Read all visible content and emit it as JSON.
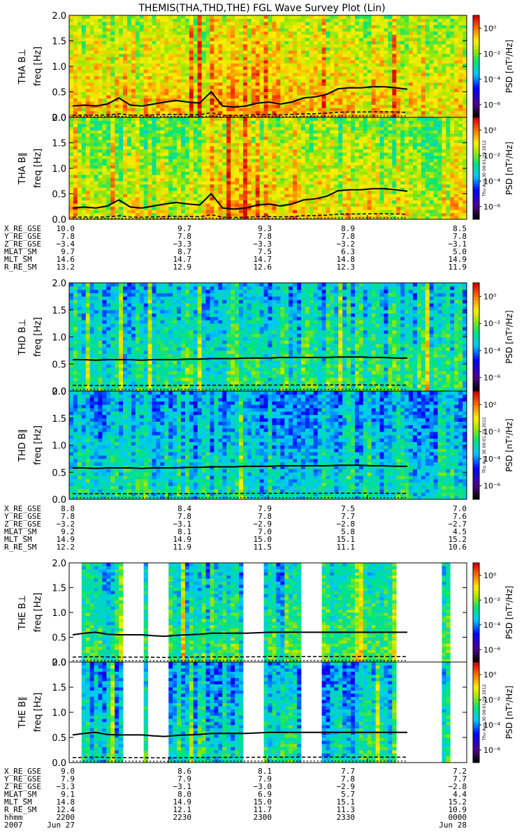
{
  "title": "THEMIS(THA,THD,THE) FGL Wave Survey Plot (Lin)",
  "colorbar": {
    "label": "PSD [nT²/Hz]",
    "tick_labels": [
      "10⁰",
      "10⁻²",
      "10⁻⁴",
      "10⁻⁶"
    ],
    "stamp": "Thu Aug 30 09:01:29 2012"
  },
  "chart_data": {
    "type": "heatmap",
    "frequency_axis": {
      "label": "freq [Hz]",
      "range": [
        0,
        2.0
      ],
      "ticks": [
        "0.0",
        "0.5",
        "1.0",
        "1.5",
        "2.0"
      ]
    },
    "color_scale": {
      "quantity": "PSD",
      "unit": "nT²/Hz",
      "log": true,
      "range": [
        1e-07,
        10
      ]
    },
    "time_axis": {
      "range": [
        "2200",
        "0000"
      ],
      "ticks": [
        "2200",
        "2230",
        "2300",
        "2330",
        "0000"
      ]
    },
    "probes": [
      {
        "id": "THA",
        "panels": [
          {
            "label": "THA B⊥",
            "mean_psd_log10": -1.2,
            "fcp_hz": [
              0.22,
              0.24,
              0.22,
              0.26,
              0.38,
              0.24,
              0.22,
              0.26,
              0.3,
              0.33,
              0.3,
              0.28,
              0.5,
              0.22,
              0.2,
              0.22,
              0.28,
              0.3,
              0.26,
              0.3,
              0.38,
              0.4,
              0.45,
              0.56,
              0.58,
              0.58,
              0.6,
              0.6,
              0.58,
              0.55
            ]
          },
          {
            "label": "THA B∥",
            "mean_psd_log10": -1.6,
            "fcp_hz": [
              0.22,
              0.24,
              0.22,
              0.26,
              0.38,
              0.24,
              0.22,
              0.26,
              0.3,
              0.33,
              0.3,
              0.28,
              0.5,
              0.22,
              0.2,
              0.22,
              0.28,
              0.3,
              0.26,
              0.3,
              0.38,
              0.4,
              0.45,
              0.56,
              0.58,
              0.58,
              0.6,
              0.6,
              0.58,
              0.55
            ]
          }
        ],
        "ephemeris": [
          [
            "X_RE_GSE",
            "10.0",
            "9.7",
            "9.3",
            "8.9",
            "8.5"
          ],
          [
            "Y_RE_GSE",
            "7.8",
            "7.8",
            "7.8",
            "7.8",
            "7.8"
          ],
          [
            "Z_RE_GSE",
            "−3.4",
            "−3.3",
            "−3.3",
            "−3.2",
            "−3.1"
          ],
          [
            "MLAT_SM",
            "9.7",
            "8.7",
            "7.5",
            "6.3",
            "5.0"
          ],
          [
            "MLT_SM",
            "14.6",
            "14.7",
            "14.7",
            "14.8",
            "14.9"
          ],
          [
            "R_RE_SM",
            "13.2",
            "12.9",
            "12.6",
            "12.3",
            "11.9"
          ]
        ]
      },
      {
        "id": "THD",
        "panels": [
          {
            "label": "THD B⊥",
            "mean_psd_log10": -3.0,
            "fcp_hz": [
              0.58,
              0.58,
              0.57,
              0.58,
              0.58,
              0.58,
              0.57,
              0.58,
              0.58,
              0.58,
              0.59,
              0.59,
              0.6,
              0.6,
              0.6,
              0.61,
              0.61,
              0.61,
              0.62,
              0.62,
              0.62,
              0.62,
              0.62,
              0.63,
              0.63,
              0.63,
              0.62,
              0.62,
              0.61,
              0.61
            ]
          },
          {
            "label": "THD B∥",
            "mean_psd_log10": -3.4,
            "fcp_hz": [
              0.58,
              0.58,
              0.57,
              0.58,
              0.58,
              0.58,
              0.57,
              0.58,
              0.58,
              0.58,
              0.59,
              0.59,
              0.6,
              0.6,
              0.6,
              0.61,
              0.61,
              0.61,
              0.62,
              0.62,
              0.62,
              0.62,
              0.62,
              0.63,
              0.63,
              0.63,
              0.62,
              0.62,
              0.61,
              0.61
            ]
          }
        ],
        "ephemeris": [
          [
            "X_RE_GSE",
            "8.8",
            "8.4",
            "7.9",
            "7.5",
            "7.0"
          ],
          [
            "Y_RE_GSE",
            "7.8",
            "7.8",
            "7.8",
            "7.7",
            "7.6"
          ],
          [
            "Z_RE_GSE",
            "−3.2",
            "−3.1",
            "−2.9",
            "−2.8",
            "−2.7"
          ],
          [
            "MLAT_SM",
            "9.2",
            "8.1",
            "7.0",
            "5.8",
            "4.5"
          ],
          [
            "MLT_SM",
            "14.9",
            "14.9",
            "15.0",
            "15.1",
            "15.2"
          ],
          [
            "R_RE_SM",
            "12.2",
            "11.9",
            "11.5",
            "11.1",
            "10.6"
          ]
        ]
      },
      {
        "id": "THE",
        "panels": [
          {
            "label": "THE B⊥",
            "mean_psd_log10": -3.0,
            "fcp_hz": [
              0.55,
              0.58,
              0.6,
              0.56,
              0.55,
              0.55,
              0.55,
              0.53,
              0.52,
              0.54,
              0.55,
              0.56,
              0.58,
              0.58,
              0.58,
              0.58,
              0.59,
              0.6,
              0.6,
              0.6,
              0.6,
              0.6,
              0.6,
              0.6,
              0.6,
              0.6,
              0.6,
              0.6,
              0.6,
              0.6
            ]
          },
          {
            "label": "THE B∥",
            "mean_psd_log10": -3.4,
            "fcp_hz": [
              0.55,
              0.58,
              0.6,
              0.56,
              0.55,
              0.55,
              0.55,
              0.53,
              0.52,
              0.54,
              0.55,
              0.56,
              0.58,
              0.58,
              0.58,
              0.58,
              0.59,
              0.6,
              0.6,
              0.6,
              0.6,
              0.6,
              0.6,
              0.6,
              0.6,
              0.6,
              0.6,
              0.6,
              0.6,
              0.6
            ]
          }
        ],
        "ephemeris": [
          [
            "X_RE_GSE",
            "9.0",
            "8.6",
            "8.1",
            "7.7",
            "7.2"
          ],
          [
            "Y_RE_GSE",
            "7.9",
            "7.9",
            "7.9",
            "7.8",
            "7.7"
          ],
          [
            "Z_RE_GSE",
            "−3.3",
            "−3.1",
            "−3.0",
            "−2.9",
            "−2.8"
          ],
          [
            "MLAT_SM",
            "9.1",
            "8.0",
            "6.9",
            "5.7",
            "4.4"
          ],
          [
            "MLT_SM",
            "14.8",
            "14.9",
            "15.0",
            "15.1",
            "15.2"
          ],
          [
            "R_RE_SM",
            "12.4",
            "12.1",
            "11.7",
            "11.3",
            "10.9"
          ]
        ],
        "time_rows": [
          [
            "hhmm",
            "2200",
            "2230",
            "2300",
            "2330",
            "0000"
          ],
          [
            "2007",
            "Jun 27",
            "",
            "",
            "",
            "Jun 28"
          ]
        ]
      }
    ]
  }
}
